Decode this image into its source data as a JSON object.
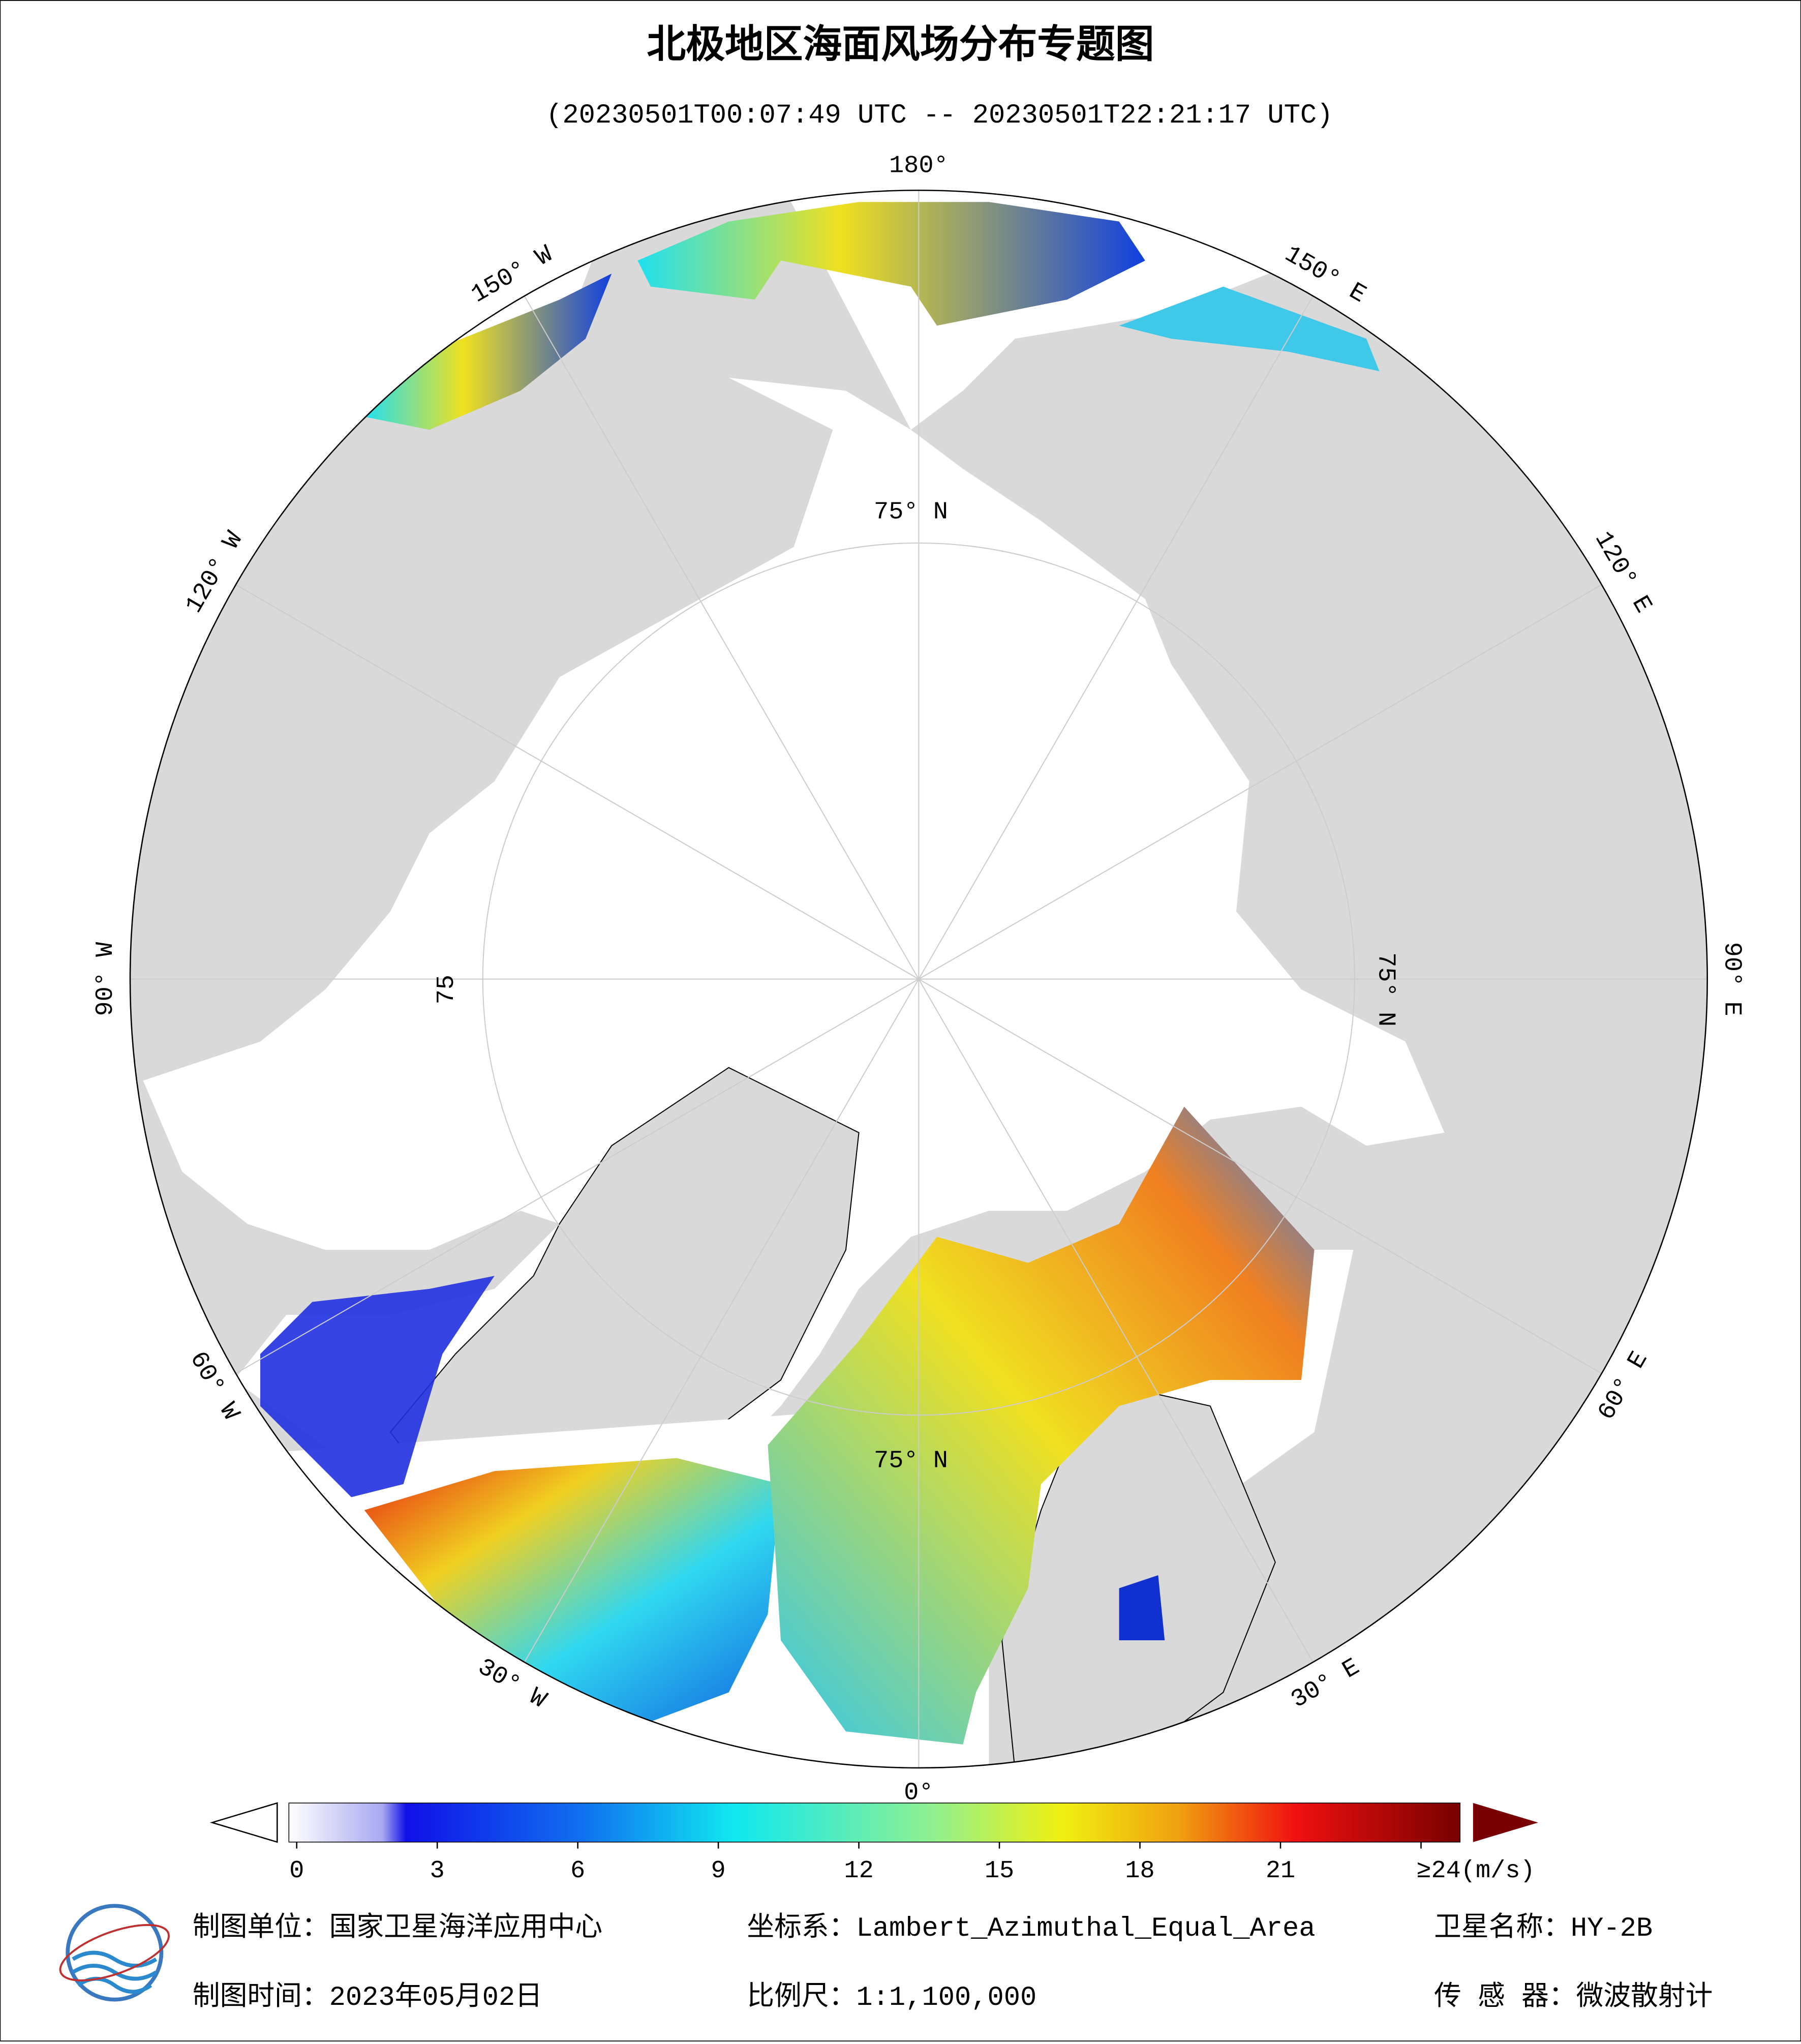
{
  "header": {
    "title": "北极地区海面风场分布专题图",
    "subtitle": "(20230501T00:07:49 UTC -- 20230501T22:21:17 UTC)"
  },
  "map": {
    "lon_labels": [
      "180°",
      "150° E",
      "120° E",
      "90° E",
      "60° E",
      "30° E",
      "0°",
      "30° W",
      "60° W",
      "90° W",
      "120° W",
      "150° W"
    ],
    "lat_labels": [
      "75° N",
      "75° N",
      "75",
      "75° N"
    ]
  },
  "colorbar": {
    "range": [
      0,
      24
    ],
    "ticks": [
      0,
      3,
      6,
      9,
      12,
      15,
      18,
      21,
      {
        "value": 24,
        "label": "≥24(m/s)"
      }
    ]
  },
  "footer": {
    "unit": "制图单位：国家卫星海洋应用中心",
    "crs": "坐标系：Lambert_Azimuthal_Equal_Area",
    "satellite": "卫星名称：HY-2B",
    "date": "制图时间：2023年05月02日",
    "scale": "比例尺：1:1,100,000",
    "sensor": "传 感 器：微波散射计"
  }
}
